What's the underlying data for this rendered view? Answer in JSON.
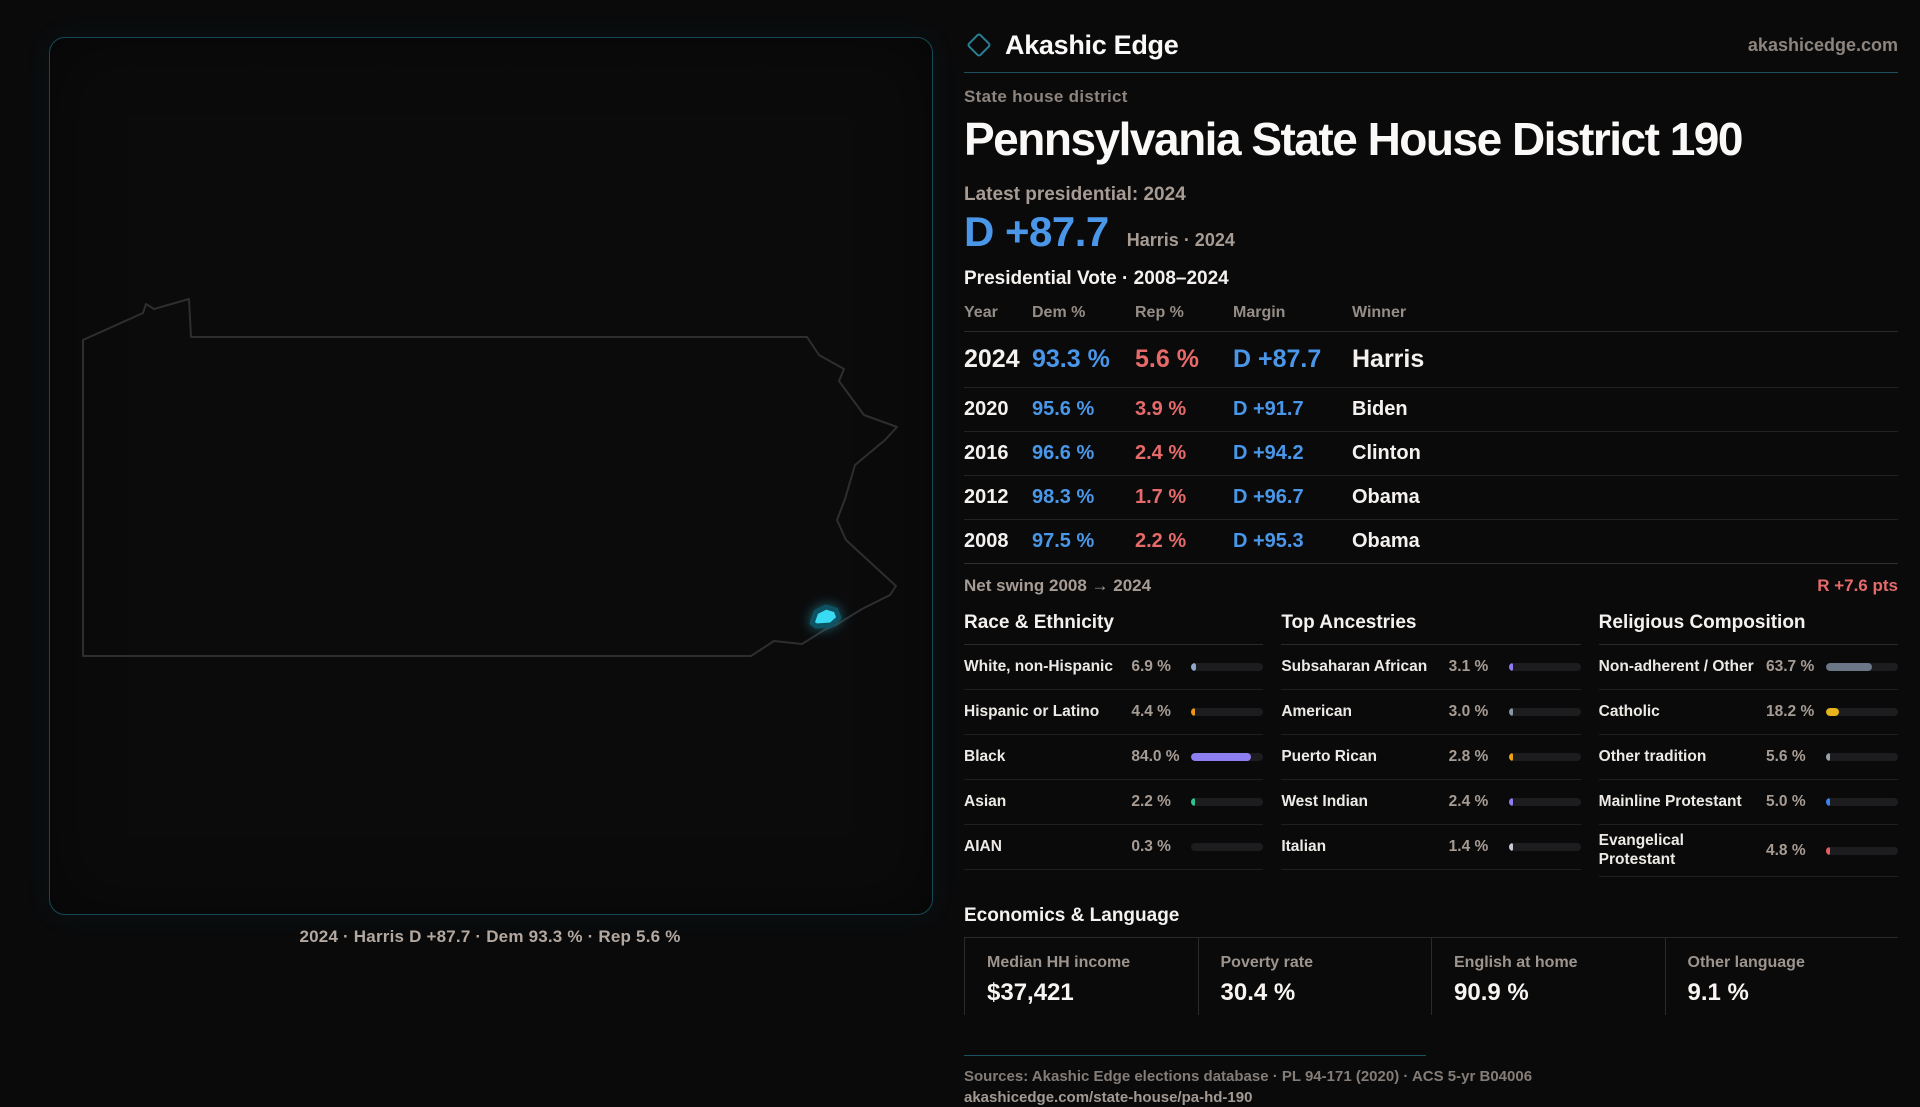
{
  "brand": {
    "name": "Akashic Edge",
    "domain": "akashicedge.com"
  },
  "map": {
    "caption": "2024 · Harris D +87.7 · Dem 93.3 % · Rep 5.6 %",
    "state": "Pennsylvania",
    "district_color": "#38dbf2",
    "outline_color": "#2e2e31",
    "panel_border_color": "#164955"
  },
  "header": {
    "kicker": "State house district",
    "title": "Pennsylvania State House District 190",
    "latest_label": "Latest presidential: 2024",
    "margin_value": "D +87.7",
    "margin_detail": "Harris · 2024"
  },
  "table": {
    "title": "Presidential Vote · 2008–2024",
    "columns": [
      "Year",
      "Dem %",
      "Rep %",
      "Margin",
      "Winner"
    ],
    "rows": [
      {
        "year": "2024",
        "dem": "93.3 %",
        "rep": "5.6 %",
        "margin": "D +87.7",
        "winner": "Harris"
      },
      {
        "year": "2020",
        "dem": "95.6 %",
        "rep": "3.9 %",
        "margin": "D +91.7",
        "winner": "Biden"
      },
      {
        "year": "2016",
        "dem": "96.6 %",
        "rep": "2.4 %",
        "margin": "D +94.2",
        "winner": "Clinton"
      },
      {
        "year": "2012",
        "dem": "98.3 %",
        "rep": "1.7 %",
        "margin": "D +96.7",
        "winner": "Obama"
      },
      {
        "year": "2008",
        "dem": "97.5 %",
        "rep": "2.2 %",
        "margin": "D +95.3",
        "winner": "Obama"
      }
    ]
  },
  "swing": {
    "label": "Net swing 2008 → 2024",
    "value": "R +7.6 pts"
  },
  "demographics": [
    {
      "title": "Race & Ethnicity",
      "rows": [
        {
          "label": "White, non-Hispanic",
          "value": "6.9 %",
          "pct": 6.9,
          "color": "#8fa9cc"
        },
        {
          "label": "Hispanic or Latino",
          "value": "4.4 %",
          "pct": 4.4,
          "color": "#ef9416"
        },
        {
          "label": "Black",
          "value": "84.0 %",
          "pct": 84.0,
          "color": "#8d7ef2"
        },
        {
          "label": "Asian",
          "value": "2.2 %",
          "pct": 2.2,
          "color": "#2ec48f"
        },
        {
          "label": "AIAN",
          "value": "0.3 %",
          "pct": 0.3,
          "color": "#e06a8a"
        }
      ]
    },
    {
      "title": "Top Ancestries",
      "rows": [
        {
          "label": "Subsaharan African",
          "value": "3.1 %",
          "pct": 3.1,
          "color": "#8d7ef2"
        },
        {
          "label": "American",
          "value": "3.0 %",
          "pct": 3.0,
          "color": "#8a95a5"
        },
        {
          "label": "Puerto Rican",
          "value": "2.8 %",
          "pct": 2.8,
          "color": "#efa116"
        },
        {
          "label": "West Indian",
          "value": "2.4 %",
          "pct": 2.4,
          "color": "#8d7ef2"
        },
        {
          "label": "Italian",
          "value": "1.4 %",
          "pct": 1.4,
          "color": "#c7ccd2"
        }
      ]
    },
    {
      "title": "Religious Composition",
      "rows": [
        {
          "label": "Non-adherent / Other",
          "value": "63.7 %",
          "pct": 63.7,
          "color": "#6b7787"
        },
        {
          "label": "Catholic",
          "value": "18.2 %",
          "pct": 18.2,
          "color": "#e7b41c"
        },
        {
          "label": "Other tradition",
          "value": "5.6 %",
          "pct": 5.6,
          "color": "#9aa0a8"
        },
        {
          "label": "Mainline Protestant",
          "value": "5.0 %",
          "pct": 5.0,
          "color": "#3d82f0"
        },
        {
          "label": "Evangelical Protestant",
          "value": "4.8 %",
          "pct": 4.8,
          "color": "#e35f5f"
        }
      ]
    }
  ],
  "economics": {
    "title": "Economics & Language",
    "stats": [
      {
        "label": "Median HH income",
        "value": "$37,421"
      },
      {
        "label": "Poverty rate",
        "value": "30.4 %"
      },
      {
        "label": "English at home",
        "value": "90.9 %"
      },
      {
        "label": "Other language",
        "value": "9.1 %"
      }
    ]
  },
  "footer": {
    "sources": "Sources: Akashic Edge elections database · PL 94-171 (2020) · ACS 5-yr B04006",
    "permalink": "akashicedge.com/state-house/pa-hd-190"
  },
  "colors": {
    "dem_blue": "#4a97ea",
    "rep_red": "#e66a6a",
    "accent_teal": "#2b7e93",
    "swing_red": "#e66a6a"
  }
}
